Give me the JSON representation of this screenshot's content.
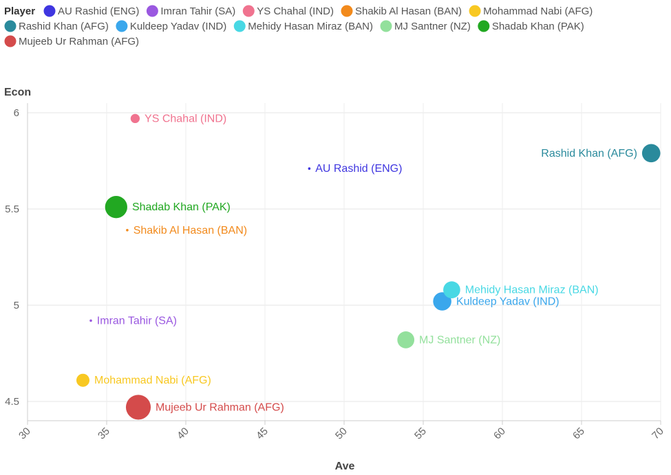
{
  "chart_data": {
    "type": "scatter",
    "legend_title": "Player",
    "legend_position": "top-left",
    "xlabel": "Ave",
    "ylabel": "Econ",
    "xlim": [
      30,
      70
    ],
    "ylim": [
      4.4,
      6.05
    ],
    "xticks": [
      30,
      35,
      40,
      45,
      50,
      55,
      60,
      65,
      70
    ],
    "yticks": [
      4.5,
      5,
      5.5,
      6
    ],
    "ytick_labels": [
      "4.5",
      "5",
      "5.5",
      "6"
    ],
    "grid": true,
    "series": [
      {
        "name": "AU Rashid (ENG)",
        "color": "#3f36e0",
        "x": 47.8,
        "y": 5.71,
        "size": 1
      },
      {
        "name": "Imran Tahir (SA)",
        "color": "#9a58e0",
        "x": 34.0,
        "y": 4.92,
        "size": 1
      },
      {
        "name": "YS Chahal (IND)",
        "color": "#f0738f",
        "x": 36.8,
        "y": 5.97,
        "size": 7
      },
      {
        "name": "Shakib Al Hasan (BAN)",
        "color": "#f28a1c",
        "x": 36.3,
        "y": 5.39,
        "size": 1
      },
      {
        "name": "Mohammad Nabi (AFG)",
        "color": "#f8c822",
        "x": 33.5,
        "y": 4.61,
        "size": 10
      },
      {
        "name": "Rashid Khan (AFG)",
        "color": "#2a8a9c",
        "x": 69.4,
        "y": 5.79,
        "size": 14
      },
      {
        "name": "Kuldeep Yadav (IND)",
        "color": "#3aa7ec",
        "x": 56.2,
        "y": 5.02,
        "size": 14
      },
      {
        "name": "Mehidy Hasan Miraz (BAN)",
        "color": "#48d8e4",
        "x": 56.8,
        "y": 5.08,
        "size": 13
      },
      {
        "name": "MJ Santner (NZ)",
        "color": "#93e09c",
        "x": 53.9,
        "y": 4.82,
        "size": 13
      },
      {
        "name": "Shadab Khan (PAK)",
        "color": "#22a822",
        "x": 35.6,
        "y": 5.51,
        "size": 17
      },
      {
        "name": "Mujeeb Ur Rahman (AFG)",
        "color": "#d44b4b",
        "x": 37.0,
        "y": 4.47,
        "size": 19
      }
    ]
  }
}
